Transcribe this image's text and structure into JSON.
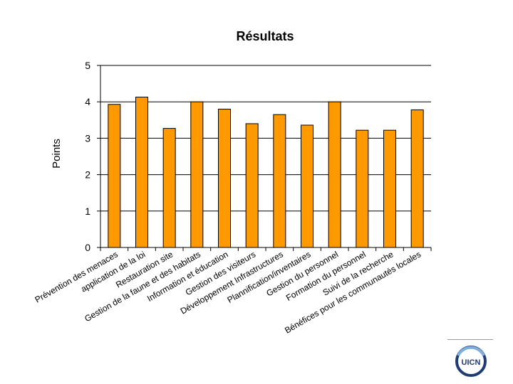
{
  "chart_data": {
    "type": "bar",
    "title": "Résultats",
    "xlabel": "",
    "ylabel": "Points",
    "ylim": [
      0,
      5
    ],
    "yticks": [
      0,
      1,
      2,
      3,
      4,
      5
    ],
    "categories": [
      "Prévention des menaces",
      "application de la loi",
      "Restauration site",
      "Gestion de la faune et des habitats",
      "Information et éducation",
      "Gestion des visiteurs",
      "Développement Infrastructures",
      "Plannification/inventaires",
      "Gestion du personnel",
      "Formation du personnel",
      "Suivi de la recherche",
      "Bénéfices pour les communautés locales"
    ],
    "values": [
      3.93,
      4.13,
      3.27,
      4.0,
      3.8,
      3.4,
      3.65,
      3.36,
      4.0,
      3.22,
      3.22,
      3.78
    ],
    "bar_color": "#ff9900",
    "bar_outline": "#000000",
    "grid": true,
    "legend": "none"
  },
  "logo": {
    "text": "UICN",
    "color": "#1f3b73"
  }
}
